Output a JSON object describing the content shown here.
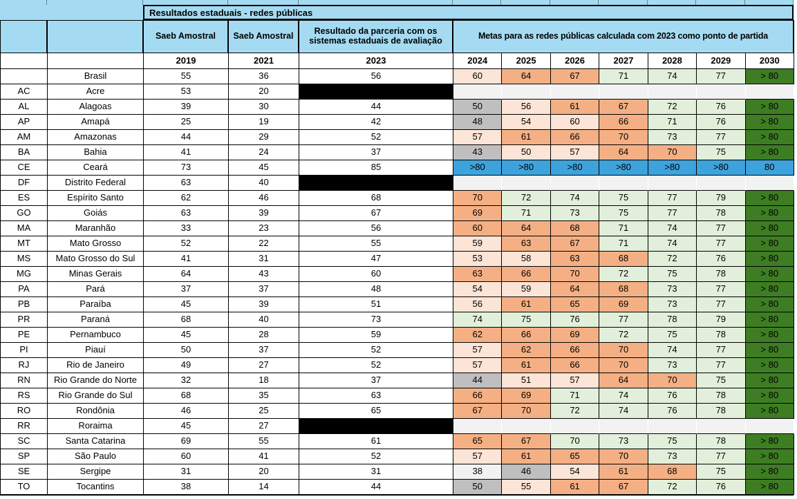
{
  "title": "Resultados estaduais - redes públicas",
  "header": {
    "col_2019_label": "Saeb Amostral",
    "col_2021_label": "Saeb Amostral",
    "col_2023_label": "Resultado da parceria com os sistemas estaduais de avaliação",
    "metas_label": "Metas para as redes públicas calculada com 2023 como ponto de partida",
    "years": [
      "2019",
      "2021",
      "2023",
      "2024",
      "2025",
      "2026",
      "2027",
      "2028",
      "2029",
      "2030"
    ]
  },
  "colors": {
    "cyan": "#A5DBF2",
    "peach": "#FCE4D6",
    "salmon": "#F4B084",
    "green": "#E2EFDA",
    "darkgreen": "#3E7D23",
    "gray": "#BFBFBF",
    "lightgray": "#F2F2F2",
    "blue": "#3EA3DC",
    "black": "#000000",
    "white": "#FFFFFF"
  },
  "rows": [
    {
      "code": "",
      "name": "Brasil",
      "y2019": "55",
      "y2021": "36",
      "y2023": "56",
      "redacted": false,
      "metas": [
        [
          "60",
          "peach"
        ],
        [
          "64",
          "salmon"
        ],
        [
          "67",
          "salmon"
        ],
        [
          "71",
          "green"
        ],
        [
          "74",
          "green"
        ],
        [
          "77",
          "green"
        ],
        [
          "> 80",
          "darkgreen"
        ]
      ]
    },
    {
      "code": "AC",
      "name": "Acre",
      "y2019": "53",
      "y2021": "20",
      "y2023": "",
      "redacted": true,
      "metas": [
        [
          "",
          "lightgray"
        ],
        [
          "",
          "lightgray"
        ],
        [
          "",
          "lightgray"
        ],
        [
          "",
          "lightgray"
        ],
        [
          "",
          "lightgray"
        ],
        [
          "",
          "lightgray"
        ],
        [
          "",
          "lightgray"
        ]
      ]
    },
    {
      "code": "AL",
      "name": "Alagoas",
      "y2019": "39",
      "y2021": "30",
      "y2023": "44",
      "redacted": false,
      "metas": [
        [
          "50",
          "gray"
        ],
        [
          "56",
          "peach"
        ],
        [
          "61",
          "salmon"
        ],
        [
          "67",
          "salmon"
        ],
        [
          "72",
          "green"
        ],
        [
          "76",
          "green"
        ],
        [
          "> 80",
          "darkgreen"
        ]
      ]
    },
    {
      "code": "AP",
      "name": "Amapá",
      "y2019": "25",
      "y2021": "19",
      "y2023": "42",
      "redacted": false,
      "metas": [
        [
          "48",
          "gray"
        ],
        [
          "54",
          "peach"
        ],
        [
          "60",
          "peach"
        ],
        [
          "66",
          "salmon"
        ],
        [
          "71",
          "green"
        ],
        [
          "76",
          "green"
        ],
        [
          "> 80",
          "darkgreen"
        ]
      ]
    },
    {
      "code": "AM",
      "name": "Amazonas",
      "y2019": "44",
      "y2021": "29",
      "y2023": "52",
      "redacted": false,
      "metas": [
        [
          "57",
          "peach"
        ],
        [
          "61",
          "salmon"
        ],
        [
          "66",
          "salmon"
        ],
        [
          "70",
          "salmon"
        ],
        [
          "73",
          "green"
        ],
        [
          "77",
          "green"
        ],
        [
          "> 80",
          "darkgreen"
        ]
      ]
    },
    {
      "code": "BA",
      "name": "Bahia",
      "y2019": "41",
      "y2021": "24",
      "y2023": "37",
      "redacted": false,
      "metas": [
        [
          "43",
          "gray"
        ],
        [
          "50",
          "peach"
        ],
        [
          "57",
          "peach"
        ],
        [
          "64",
          "salmon"
        ],
        [
          "70",
          "salmon"
        ],
        [
          "75",
          "green"
        ],
        [
          "> 80",
          "darkgreen"
        ]
      ]
    },
    {
      "code": "CE",
      "name": "Ceará",
      "y2019": "73",
      "y2021": "45",
      "y2023": "85",
      "redacted": false,
      "metas": [
        [
          ">80",
          "blue"
        ],
        [
          ">80",
          "blue"
        ],
        [
          ">80",
          "blue"
        ],
        [
          ">80",
          "blue"
        ],
        [
          ">80",
          "blue"
        ],
        [
          ">80",
          "blue"
        ],
        [
          "80",
          "blue"
        ]
      ]
    },
    {
      "code": "DF",
      "name": "Distrito Federal",
      "y2019": "63",
      "y2021": "40",
      "y2023": "",
      "redacted": true,
      "metas": [
        [
          "",
          "lightgray"
        ],
        [
          "",
          "lightgray"
        ],
        [
          "",
          "lightgray"
        ],
        [
          "",
          "lightgray"
        ],
        [
          "",
          "lightgray"
        ],
        [
          "",
          "lightgray"
        ],
        [
          "",
          "lightgray"
        ]
      ]
    },
    {
      "code": "ES",
      "name": "Espírito Santo",
      "y2019": "62",
      "y2021": "46",
      "y2023": "68",
      "redacted": false,
      "metas": [
        [
          "70",
          "salmon"
        ],
        [
          "72",
          "green"
        ],
        [
          "74",
          "green"
        ],
        [
          "75",
          "green"
        ],
        [
          "77",
          "green"
        ],
        [
          "79",
          "green"
        ],
        [
          "> 80",
          "darkgreen"
        ]
      ]
    },
    {
      "code": "GO",
      "name": "Goiás",
      "y2019": "63",
      "y2021": "39",
      "y2023": "67",
      "redacted": false,
      "metas": [
        [
          "69",
          "salmon"
        ],
        [
          "71",
          "green"
        ],
        [
          "73",
          "green"
        ],
        [
          "75",
          "green"
        ],
        [
          "77",
          "green"
        ],
        [
          "78",
          "green"
        ],
        [
          "> 80",
          "darkgreen"
        ]
      ]
    },
    {
      "code": "MA",
      "name": "Maranhão",
      "y2019": "33",
      "y2021": "23",
      "y2023": "56",
      "redacted": false,
      "metas": [
        [
          "60",
          "salmon"
        ],
        [
          "64",
          "salmon"
        ],
        [
          "68",
          "salmon"
        ],
        [
          "71",
          "green"
        ],
        [
          "74",
          "green"
        ],
        [
          "77",
          "green"
        ],
        [
          "> 80",
          "darkgreen"
        ]
      ]
    },
    {
      "code": "MT",
      "name": "Mato Grosso",
      "y2019": "52",
      "y2021": "22",
      "y2023": "55",
      "redacted": false,
      "metas": [
        [
          "59",
          "peach"
        ],
        [
          "63",
          "salmon"
        ],
        [
          "67",
          "salmon"
        ],
        [
          "71",
          "green"
        ],
        [
          "74",
          "green"
        ],
        [
          "77",
          "green"
        ],
        [
          "> 80",
          "darkgreen"
        ]
      ]
    },
    {
      "code": "MS",
      "name": "Mato Grosso do Sul",
      "y2019": "41",
      "y2021": "31",
      "y2023": "47",
      "redacted": false,
      "metas": [
        [
          "53",
          "peach"
        ],
        [
          "58",
          "peach"
        ],
        [
          "63",
          "salmon"
        ],
        [
          "68",
          "salmon"
        ],
        [
          "72",
          "green"
        ],
        [
          "76",
          "green"
        ],
        [
          "> 80",
          "darkgreen"
        ]
      ]
    },
    {
      "code": "MG",
      "name": "Minas Gerais",
      "y2019": "64",
      "y2021": "43",
      "y2023": "60",
      "redacted": false,
      "metas": [
        [
          "63",
          "salmon"
        ],
        [
          "66",
          "salmon"
        ],
        [
          "70",
          "salmon"
        ],
        [
          "72",
          "green"
        ],
        [
          "75",
          "green"
        ],
        [
          "78",
          "green"
        ],
        [
          "> 80",
          "darkgreen"
        ]
      ]
    },
    {
      "code": "PA",
      "name": "Pará",
      "y2019": "37",
      "y2021": "37",
      "y2023": "48",
      "redacted": false,
      "metas": [
        [
          "54",
          "peach"
        ],
        [
          "59",
          "peach"
        ],
        [
          "64",
          "salmon"
        ],
        [
          "68",
          "salmon"
        ],
        [
          "73",
          "green"
        ],
        [
          "77",
          "green"
        ],
        [
          "> 80",
          "darkgreen"
        ]
      ]
    },
    {
      "code": "PB",
      "name": "Paraíba",
      "y2019": "45",
      "y2021": "39",
      "y2023": "51",
      "redacted": false,
      "metas": [
        [
          "56",
          "peach"
        ],
        [
          "61",
          "salmon"
        ],
        [
          "65",
          "salmon"
        ],
        [
          "69",
          "salmon"
        ],
        [
          "73",
          "green"
        ],
        [
          "77",
          "green"
        ],
        [
          "> 80",
          "darkgreen"
        ]
      ]
    },
    {
      "code": "PR",
      "name": "Paraná",
      "y2019": "68",
      "y2021": "40",
      "y2023": "73",
      "redacted": false,
      "metas": [
        [
          "74",
          "green"
        ],
        [
          "75",
          "green"
        ],
        [
          "76",
          "green"
        ],
        [
          "77",
          "green"
        ],
        [
          "78",
          "green"
        ],
        [
          "79",
          "green"
        ],
        [
          "> 80",
          "darkgreen"
        ]
      ]
    },
    {
      "code": "PE",
      "name": "Pernambuco",
      "y2019": "45",
      "y2021": "28",
      "y2023": "59",
      "redacted": false,
      "metas": [
        [
          "62",
          "salmon"
        ],
        [
          "66",
          "salmon"
        ],
        [
          "69",
          "salmon"
        ],
        [
          "72",
          "green"
        ],
        [
          "75",
          "green"
        ],
        [
          "78",
          "green"
        ],
        [
          "> 80",
          "darkgreen"
        ]
      ]
    },
    {
      "code": "PI",
      "name": "Piauí",
      "y2019": "50",
      "y2021": "37",
      "y2023": "52",
      "redacted": false,
      "metas": [
        [
          "57",
          "peach"
        ],
        [
          "62",
          "salmon"
        ],
        [
          "66",
          "salmon"
        ],
        [
          "70",
          "salmon"
        ],
        [
          "74",
          "green"
        ],
        [
          "77",
          "green"
        ],
        [
          "> 80",
          "darkgreen"
        ]
      ]
    },
    {
      "code": "RJ",
      "name": "Rio de Janeiro",
      "y2019": "49",
      "y2021": "27",
      "y2023": "52",
      "redacted": false,
      "metas": [
        [
          "57",
          "peach"
        ],
        [
          "61",
          "salmon"
        ],
        [
          "66",
          "salmon"
        ],
        [
          "70",
          "salmon"
        ],
        [
          "73",
          "green"
        ],
        [
          "77",
          "green"
        ],
        [
          "> 80",
          "darkgreen"
        ]
      ]
    },
    {
      "code": "RN",
      "name": "Rio Grande do Norte",
      "y2019": "32",
      "y2021": "18",
      "y2023": "37",
      "redacted": false,
      "metas": [
        [
          "44",
          "gray"
        ],
        [
          "51",
          "peach"
        ],
        [
          "57",
          "peach"
        ],
        [
          "64",
          "salmon"
        ],
        [
          "70",
          "salmon"
        ],
        [
          "75",
          "green"
        ],
        [
          "> 80",
          "darkgreen"
        ]
      ]
    },
    {
      "code": "RS",
      "name": "Rio Grande do Sul",
      "y2019": "68",
      "y2021": "35",
      "y2023": "63",
      "redacted": false,
      "metas": [
        [
          "66",
          "salmon"
        ],
        [
          "69",
          "salmon"
        ],
        [
          "71",
          "green"
        ],
        [
          "74",
          "green"
        ],
        [
          "76",
          "green"
        ],
        [
          "78",
          "green"
        ],
        [
          "> 80",
          "darkgreen"
        ]
      ]
    },
    {
      "code": "RO",
      "name": "Rondônia",
      "y2019": "46",
      "y2021": "25",
      "y2023": "65",
      "redacted": false,
      "metas": [
        [
          "67",
          "salmon"
        ],
        [
          "70",
          "salmon"
        ],
        [
          "72",
          "green"
        ],
        [
          "74",
          "green"
        ],
        [
          "76",
          "green"
        ],
        [
          "78",
          "green"
        ],
        [
          "> 80",
          "darkgreen"
        ]
      ]
    },
    {
      "code": "RR",
      "name": "Roraima",
      "y2019": "45",
      "y2021": "27",
      "y2023": "",
      "redacted": true,
      "metas": [
        [
          "",
          "lightgray"
        ],
        [
          "",
          "lightgray"
        ],
        [
          "",
          "lightgray"
        ],
        [
          "",
          "lightgray"
        ],
        [
          "",
          "lightgray"
        ],
        [
          "",
          "lightgray"
        ],
        [
          "",
          "lightgray"
        ]
      ]
    },
    {
      "code": "SC",
      "name": "Santa Catarina",
      "y2019": "69",
      "y2021": "55",
      "y2023": "61",
      "redacted": false,
      "metas": [
        [
          "65",
          "salmon"
        ],
        [
          "67",
          "salmon"
        ],
        [
          "70",
          "green"
        ],
        [
          "73",
          "green"
        ],
        [
          "75",
          "green"
        ],
        [
          "78",
          "green"
        ],
        [
          "> 80",
          "darkgreen"
        ]
      ]
    },
    {
      "code": "SP",
      "name": "São Paulo",
      "y2019": "60",
      "y2021": "41",
      "y2023": "52",
      "redacted": false,
      "metas": [
        [
          "57",
          "peach"
        ],
        [
          "61",
          "salmon"
        ],
        [
          "65",
          "salmon"
        ],
        [
          "70",
          "salmon"
        ],
        [
          "73",
          "green"
        ],
        [
          "77",
          "green"
        ],
        [
          "> 80",
          "darkgreen"
        ]
      ]
    },
    {
      "code": "SE",
      "name": "Sergipe",
      "y2019": "31",
      "y2021": "20",
      "y2023": "31",
      "redacted": false,
      "metas": [
        [
          "38",
          "lightgray"
        ],
        [
          "46",
          "gray"
        ],
        [
          "54",
          "peach"
        ],
        [
          "61",
          "salmon"
        ],
        [
          "68",
          "salmon"
        ],
        [
          "75",
          "green"
        ],
        [
          "> 80",
          "darkgreen"
        ]
      ]
    },
    {
      "code": "TO",
      "name": "Tocantins",
      "y2019": "38",
      "y2021": "14",
      "y2023": "44",
      "redacted": false,
      "metas": [
        [
          "50",
          "gray"
        ],
        [
          "55",
          "peach"
        ],
        [
          "61",
          "salmon"
        ],
        [
          "67",
          "salmon"
        ],
        [
          "72",
          "green"
        ],
        [
          "76",
          "green"
        ],
        [
          "> 80",
          "darkgreen"
        ]
      ]
    }
  ]
}
